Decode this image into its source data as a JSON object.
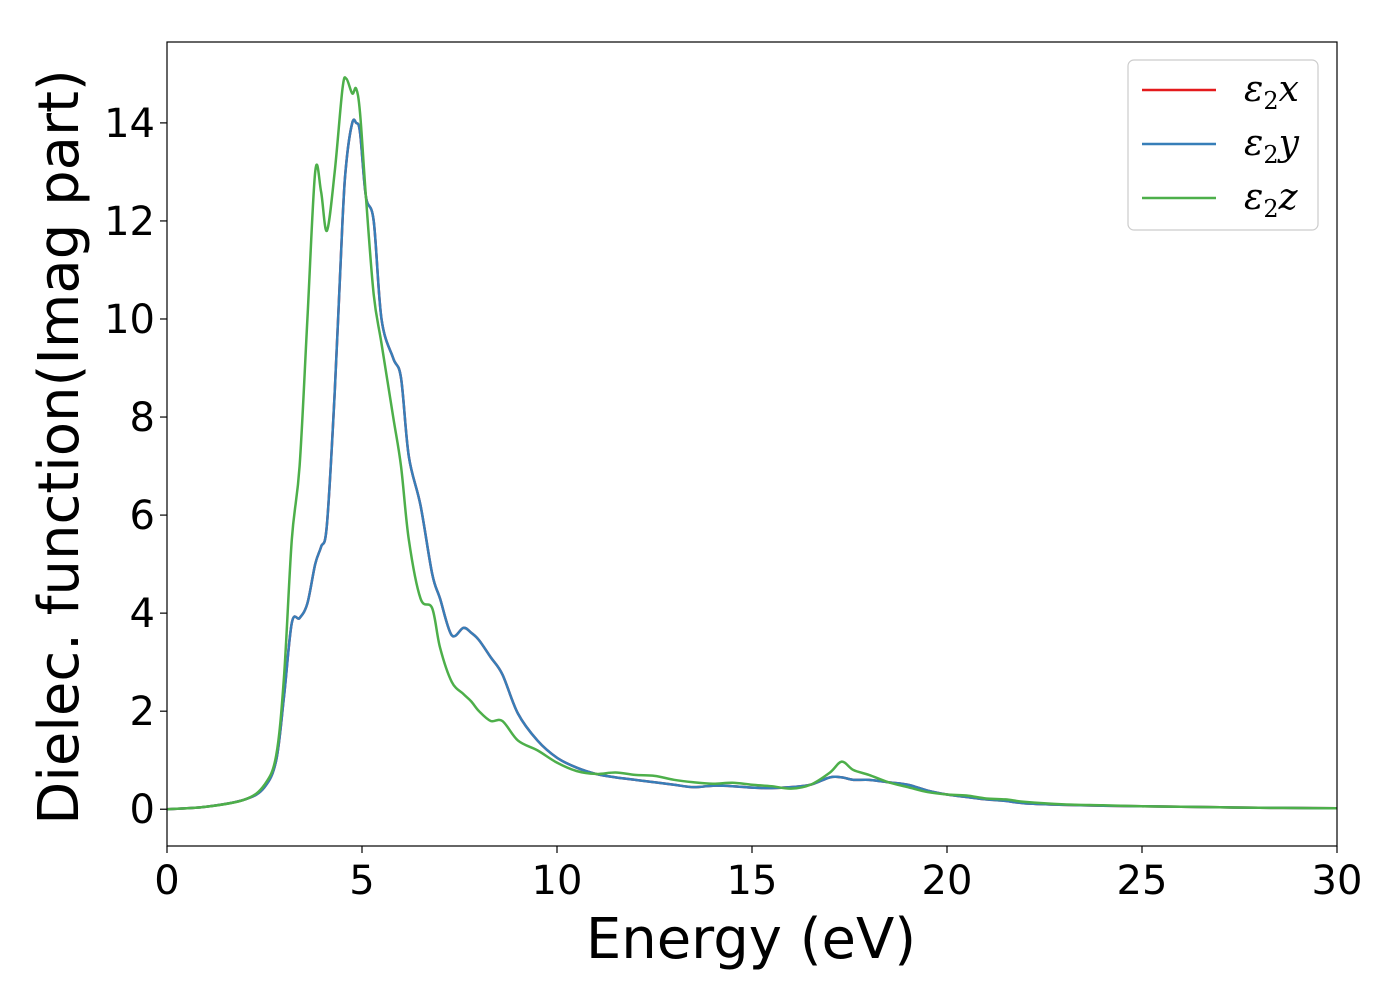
{
  "chart_data": {
    "type": "line",
    "xlabel": "Energy (eV)",
    "ylabel": "Dielec. function(Imag part)",
    "xlim": [
      0,
      30
    ],
    "ylim": [
      -0.75,
      15.65
    ],
    "xticks": [
      "0",
      "5",
      "10",
      "15",
      "20",
      "25",
      "30"
    ],
    "yticks": [
      "0",
      "2",
      "4",
      "6",
      "8",
      "10",
      "12",
      "14"
    ],
    "grid": false,
    "legend_position": "top-right",
    "x": [
      0,
      1,
      2,
      2.5,
      2.8,
      3.0,
      3.2,
      3.4,
      3.6,
      3.8,
      3.95,
      4.1,
      4.3,
      4.5,
      4.6,
      4.75,
      4.85,
      4.95,
      5.1,
      5.3,
      5.5,
      5.8,
      6.0,
      6.2,
      6.5,
      6.8,
      7.0,
      7.3,
      7.6,
      7.8,
      8.0,
      8.3,
      8.6,
      9.0,
      9.5,
      10.0,
      10.5,
      11.0,
      11.5,
      12.0,
      12.5,
      13.0,
      13.5,
      14.0,
      14.5,
      15.0,
      15.5,
      16.0,
      16.5,
      17.0,
      17.3,
      17.6,
      18.0,
      18.5,
      19.0,
      19.5,
      20.0,
      20.5,
      21.0,
      21.5,
      22.0,
      23.0,
      24.0,
      25.0,
      26.0,
      27.0,
      28.0,
      29.0,
      30.0
    ],
    "series": [
      {
        "name": "x",
        "color": "#e41a1c",
        "values": [
          0,
          0.05,
          0.2,
          0.45,
          1.0,
          2.3,
          3.8,
          3.9,
          4.2,
          5.0,
          5.35,
          5.8,
          8.5,
          12.0,
          13.2,
          14.0,
          14.0,
          13.8,
          12.5,
          12.0,
          10.0,
          9.2,
          8.8,
          7.2,
          6.2,
          4.8,
          4.3,
          3.55,
          3.7,
          3.6,
          3.45,
          3.1,
          2.75,
          1.95,
          1.4,
          1.05,
          0.85,
          0.72,
          0.65,
          0.6,
          0.55,
          0.5,
          0.45,
          0.48,
          0.47,
          0.44,
          0.43,
          0.45,
          0.5,
          0.65,
          0.65,
          0.6,
          0.6,
          0.55,
          0.5,
          0.38,
          0.3,
          0.25,
          0.2,
          0.17,
          0.12,
          0.09,
          0.07,
          0.06,
          0.05,
          0.04,
          0.03,
          0.025,
          0.02
        ]
      },
      {
        "name": "y",
        "color": "#377eb8",
        "values": [
          0,
          0.05,
          0.2,
          0.45,
          1.0,
          2.3,
          3.8,
          3.9,
          4.2,
          5.0,
          5.35,
          5.8,
          8.5,
          12.0,
          13.2,
          14.0,
          14.0,
          13.8,
          12.5,
          12.0,
          10.0,
          9.2,
          8.8,
          7.2,
          6.2,
          4.8,
          4.3,
          3.55,
          3.7,
          3.6,
          3.45,
          3.1,
          2.75,
          1.95,
          1.4,
          1.05,
          0.85,
          0.72,
          0.65,
          0.6,
          0.55,
          0.5,
          0.45,
          0.48,
          0.47,
          0.44,
          0.43,
          0.45,
          0.5,
          0.65,
          0.65,
          0.6,
          0.6,
          0.55,
          0.5,
          0.38,
          0.3,
          0.25,
          0.2,
          0.17,
          0.12,
          0.09,
          0.07,
          0.06,
          0.05,
          0.04,
          0.03,
          0.025,
          0.02
        ]
      },
      {
        "name": "z",
        "color": "#4daf4a",
        "values": [
          0,
          0.05,
          0.2,
          0.5,
          1.1,
          2.7,
          5.5,
          7.0,
          10.0,
          13.0,
          12.6,
          11.8,
          13.0,
          14.7,
          14.9,
          14.6,
          14.7,
          14.2,
          12.5,
          10.5,
          9.5,
          8.0,
          7.0,
          5.5,
          4.3,
          4.1,
          3.3,
          2.6,
          2.35,
          2.2,
          2.0,
          1.8,
          1.8,
          1.4,
          1.2,
          0.95,
          0.78,
          0.72,
          0.75,
          0.7,
          0.68,
          0.6,
          0.55,
          0.52,
          0.54,
          0.5,
          0.47,
          0.42,
          0.5,
          0.75,
          0.97,
          0.8,
          0.7,
          0.55,
          0.45,
          0.35,
          0.3,
          0.28,
          0.22,
          0.2,
          0.15,
          0.1,
          0.08,
          0.06,
          0.05,
          0.04,
          0.03,
          0.025,
          0.02
        ]
      }
    ]
  },
  "legend": {
    "symbol": "ε",
    "subscript": "2",
    "labels": [
      "x",
      "y",
      "z"
    ]
  }
}
